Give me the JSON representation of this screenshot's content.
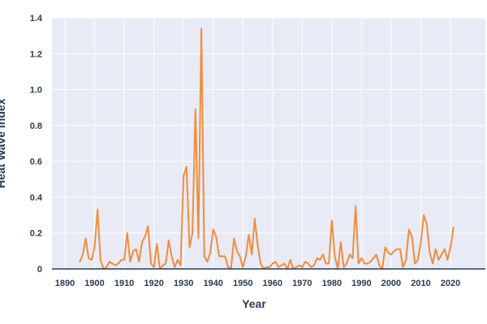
{
  "chart_data": {
    "type": "line",
    "title": "",
    "xlabel": "Year",
    "ylabel": "Heat Wave Index",
    "xlim": [
      1890,
      2025
    ],
    "ylim": [
      0,
      1.4
    ],
    "x_ticks": [
      1890,
      1900,
      1910,
      1920,
      1930,
      1940,
      1950,
      1960,
      1970,
      1980,
      1990,
      2000,
      2010,
      2020
    ],
    "y_ticks": [
      0,
      0.2,
      0.4,
      0.6,
      0.8,
      1.0,
      1.2,
      1.4
    ],
    "y_tick_labels": [
      "0",
      "0.2",
      "0.4",
      "0.6",
      "0.8",
      "1.0",
      "1.2",
      "1.4"
    ],
    "grid": true,
    "legend": "none",
    "colors": {
      "line": "#f28c3c",
      "plot_bg": "#e8ebf6",
      "grid": "#ffffff",
      "axis": "#2a3a55"
    },
    "series": [
      {
        "x": [
          1895,
          1896,
          1897,
          1898,
          1899,
          1900,
          1901,
          1902,
          1903,
          1904,
          1905,
          1906,
          1907,
          1908,
          1909,
          1910,
          1911,
          1912,
          1913,
          1914,
          1915,
          1916,
          1917,
          1918,
          1919,
          1920,
          1921,
          1922,
          1923,
          1924,
          1925,
          1926,
          1927,
          1928,
          1929,
          1930,
          1931,
          1932,
          1933,
          1934,
          1935,
          1936,
          1937,
          1938,
          1939,
          1940,
          1941,
          1942,
          1943,
          1944,
          1945,
          1946,
          1947,
          1948,
          1949,
          1950,
          1951,
          1952,
          1953,
          1954,
          1955,
          1956,
          1957,
          1958,
          1959,
          1960,
          1961,
          1962,
          1963,
          1964,
          1965,
          1966,
          1967,
          1968,
          1969,
          1970,
          1971,
          1972,
          1973,
          1974,
          1975,
          1976,
          1977,
          1978,
          1979,
          1980,
          1981,
          1982,
          1983,
          1984,
          1985,
          1986,
          1987,
          1988,
          1989,
          1990,
          1991,
          1992,
          1993,
          1994,
          1995,
          1996,
          1997,
          1998,
          1999,
          2000,
          2001,
          2002,
          2003,
          2004,
          2005,
          2006,
          2007,
          2008,
          2009,
          2010,
          2011,
          2012,
          2013,
          2014,
          2015,
          2016,
          2017,
          2018,
          2019,
          2020,
          2021
        ],
        "values": [
          0.04,
          0.08,
          0.17,
          0.06,
          0.05,
          0.12,
          0.33,
          0.05,
          0.0,
          0.01,
          0.04,
          0.03,
          0.02,
          0.03,
          0.05,
          0.05,
          0.2,
          0.04,
          0.1,
          0.11,
          0.04,
          0.15,
          0.18,
          0.24,
          0.03,
          0.01,
          0.14,
          0.0,
          0.02,
          0.03,
          0.16,
          0.07,
          0.01,
          0.05,
          0.02,
          0.52,
          0.57,
          0.12,
          0.2,
          0.89,
          0.17,
          1.34,
          0.07,
          0.04,
          0.09,
          0.22,
          0.18,
          0.07,
          0.07,
          0.07,
          0.01,
          0.0,
          0.17,
          0.1,
          0.07,
          0.01,
          0.07,
          0.19,
          0.08,
          0.28,
          0.13,
          0.03,
          0.0,
          0.01,
          0.01,
          0.03,
          0.04,
          0.01,
          0.02,
          0.03,
          0.0,
          0.05,
          0.0,
          0.01,
          0.02,
          0.01,
          0.04,
          0.03,
          0.01,
          0.02,
          0.06,
          0.05,
          0.08,
          0.03,
          0.03,
          0.27,
          0.07,
          0.0,
          0.15,
          0.01,
          0.03,
          0.08,
          0.06,
          0.35,
          0.03,
          0.06,
          0.03,
          0.03,
          0.04,
          0.06,
          0.08,
          0.02,
          0.0,
          0.12,
          0.09,
          0.08,
          0.1,
          0.11,
          0.11,
          0.01,
          0.05,
          0.22,
          0.18,
          0.03,
          0.05,
          0.15,
          0.3,
          0.25,
          0.09,
          0.03,
          0.11,
          0.05,
          0.08,
          0.11,
          0.05,
          0.12,
          0.23
        ]
      }
    ]
  }
}
